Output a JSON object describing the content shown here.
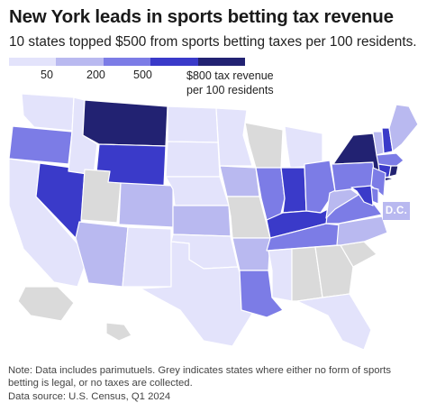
{
  "title": "New York leads in sports betting tax revenue",
  "subtitle": "10 states topped $500 from sports betting taxes per 100 residents.",
  "legend": {
    "colors": [
      "#e3e3fb",
      "#b9b9f0",
      "#7c7ce6",
      "#3a3ac9",
      "#222272"
    ],
    "labels": [
      "50",
      "200",
      "500"
    ],
    "last_label_line1": "$800 tax revenue",
    "last_label_line2": "per 100 residents"
  },
  "no_data_color": "#dadada",
  "states": {
    "WA": "light",
    "OR": "mid",
    "CA": "light",
    "NV": "dark",
    "ID": "light",
    "MT": "darkest",
    "WY": "dark",
    "UT": "none",
    "AZ": "light2",
    "CO": "light2",
    "NM": "light",
    "ND": "light",
    "SD": "light",
    "NE": "light",
    "KS": "light2",
    "OK": "light",
    "TX": "light",
    "MN": "light",
    "IA": "light2",
    "MO": "none",
    "AR": "light2",
    "LA": "mid",
    "WI": "none",
    "IL": "mid",
    "MI": "light",
    "IN": "dark",
    "OH": "mid",
    "KY": "dark",
    "TN": "mid",
    "MS": "light",
    "AL": "none",
    "GA": "none",
    "SC": "none",
    "FL": "light",
    "NC": "light2",
    "VA": "mid",
    "WV": "light2",
    "PA": "mid",
    "NY": "darkest",
    "VT": "light2",
    "NH": "dark",
    "ME": "light2",
    "MA": "mid",
    "CT": "dark",
    "RI": "darkest",
    "NJ": "mid",
    "DE": "mid",
    "MD": "dark",
    "AK": "none",
    "HI": "none"
  },
  "dc_label": "D.C.",
  "note": "Note: Data includes parimutuels. Grey indicates states where either no form of sports betting is legal, or no taxes are collected.",
  "source": "Data source: U.S. Census, Q1 2024"
}
